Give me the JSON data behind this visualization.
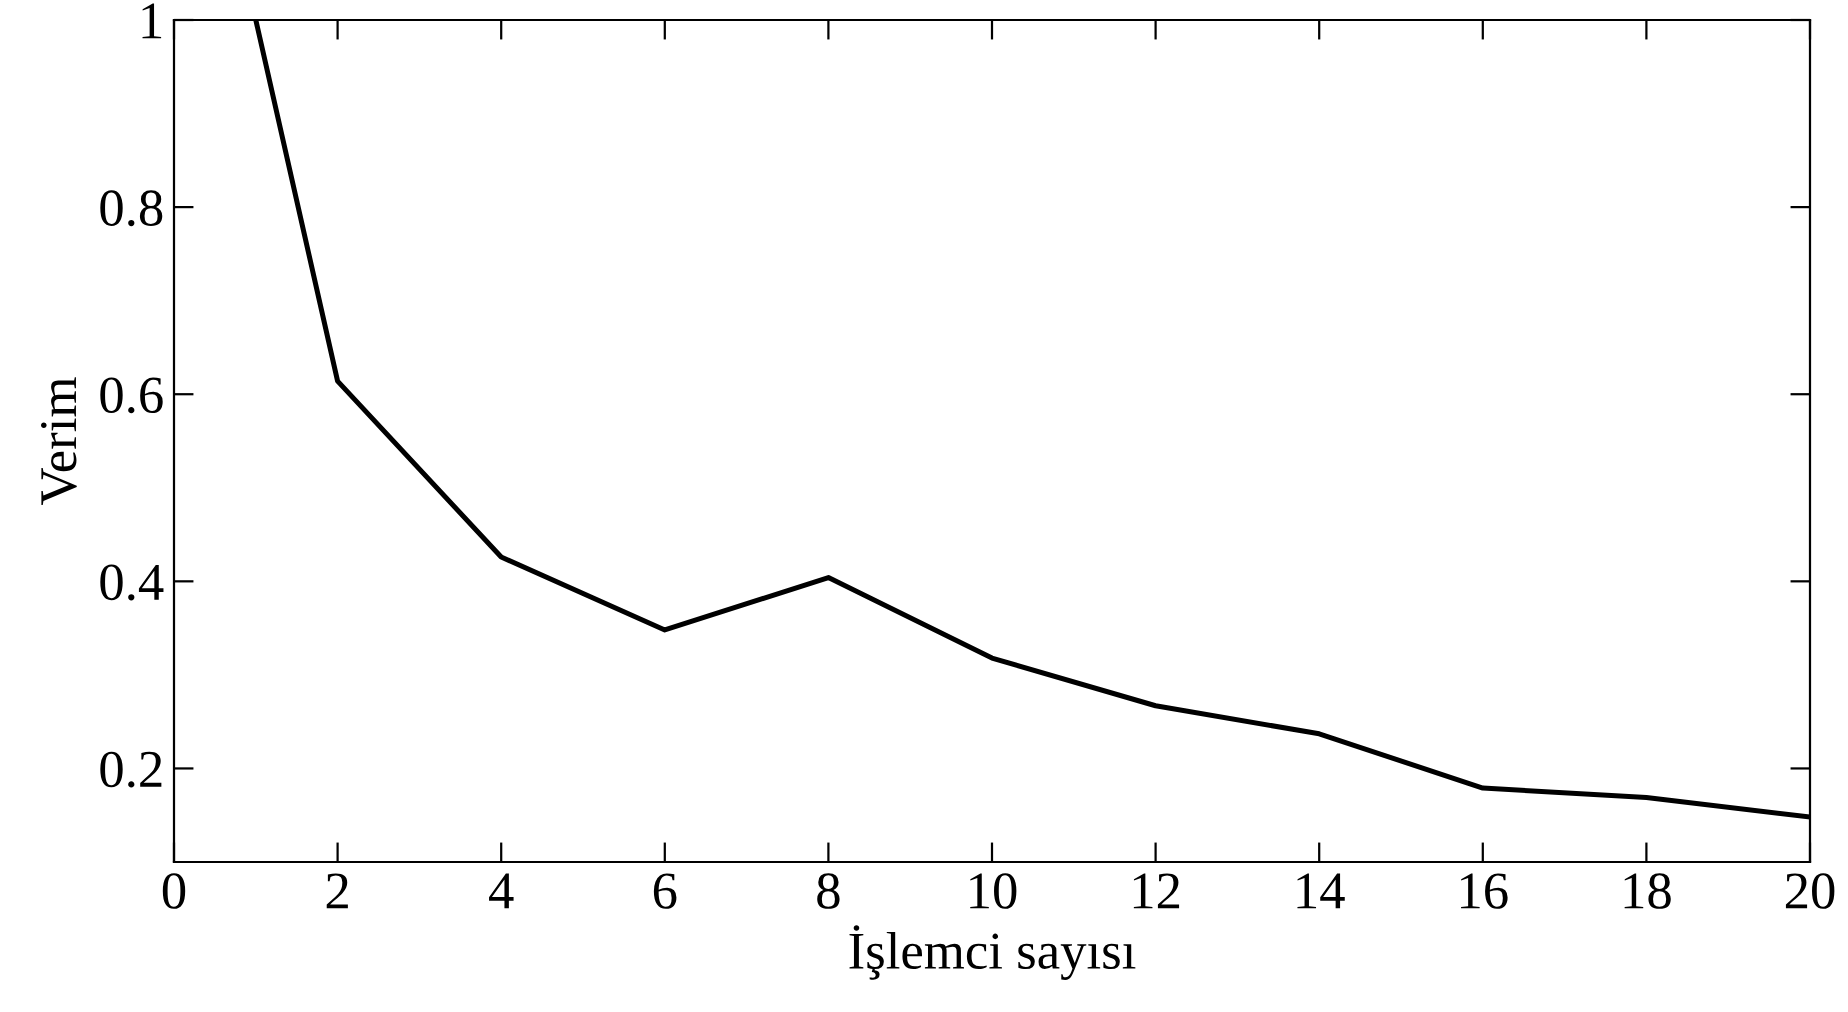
{
  "chart_data": {
    "type": "line",
    "xlabel": "İşlemci sayısı",
    "ylabel": "Verim",
    "x": [
      1,
      2,
      4,
      6,
      8,
      10,
      12,
      14,
      16,
      18,
      20
    ],
    "series": [
      {
        "color": "#000000",
        "values": [
          1.0,
          0.614,
          0.426,
          0.348,
          0.404,
          0.318,
          0.267,
          0.237,
          0.179,
          0.169,
          0.148
        ]
      }
    ],
    "xlim": [
      0,
      20
    ],
    "xticks": [
      0,
      2,
      4,
      6,
      8,
      10,
      12,
      14,
      16,
      18,
      20
    ],
    "ylim": [
      0.1,
      1
    ],
    "yticks": [
      0.2,
      0.4,
      0.6,
      0.8,
      1
    ],
    "grid": false,
    "legend": false,
    "marker": "none",
    "line_style": "solid"
  }
}
